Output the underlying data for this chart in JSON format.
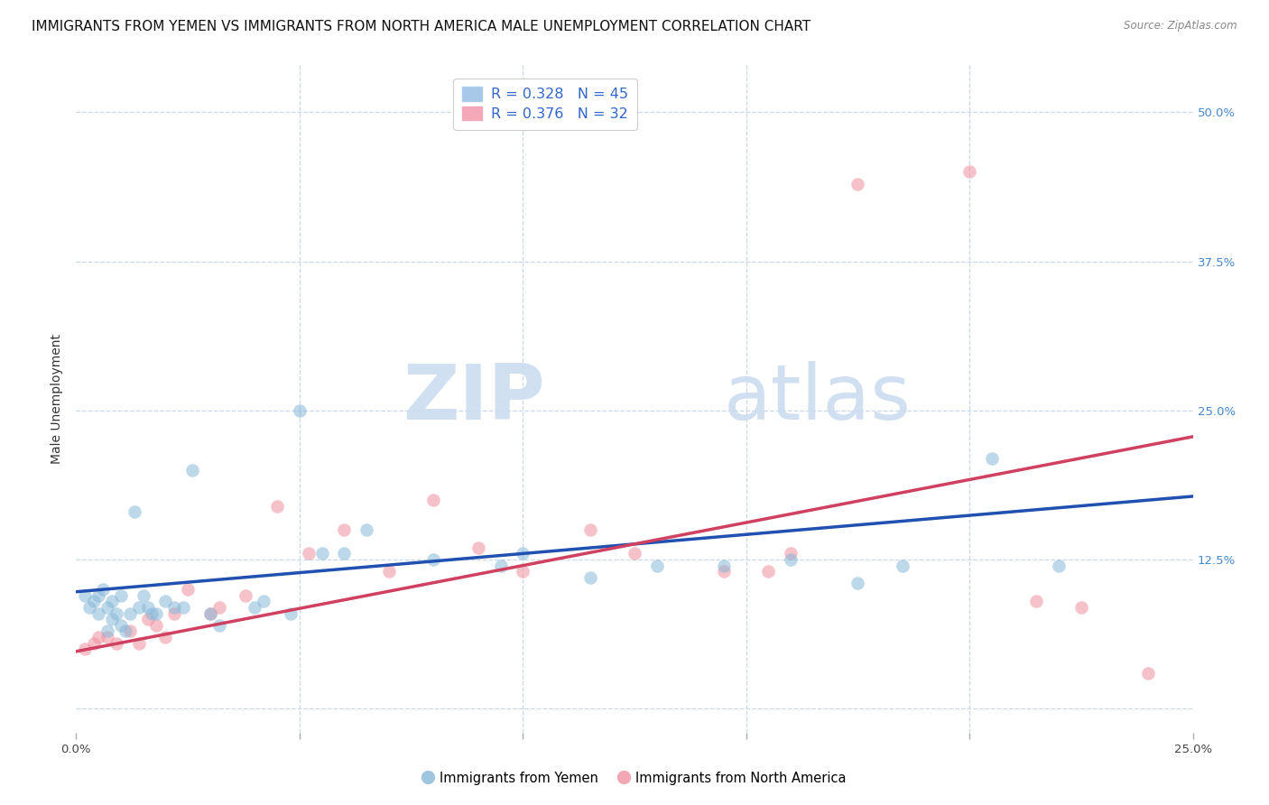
{
  "title": "IMMIGRANTS FROM YEMEN VS IMMIGRANTS FROM NORTH AMERICA MALE UNEMPLOYMENT CORRELATION CHART",
  "source": "Source: ZipAtlas.com",
  "ylabel": "Male Unemployment",
  "xlim": [
    0.0,
    0.25
  ],
  "ylim": [
    -0.02,
    0.54
  ],
  "xticks": [
    0.0,
    0.05,
    0.1,
    0.15,
    0.2,
    0.25
  ],
  "yticks_right": [
    0.0,
    0.125,
    0.25,
    0.375,
    0.5
  ],
  "ytick_labels_right": [
    "",
    "12.5%",
    "25.0%",
    "37.5%",
    "50.0%"
  ],
  "xtick_labels": [
    "0.0%",
    "",
    "",
    "",
    "",
    "25.0%"
  ],
  "legend_label1": "R = 0.328   N = 45",
  "legend_label2": "R = 0.376   N = 32",
  "legend_color1": "#a8c8e8",
  "legend_color2": "#f4a8b8",
  "scatter_color1": "#88b8d8",
  "scatter_color2": "#f090a0",
  "line_color1": "#2050b0",
  "line_color2": "#d04060",
  "watermark_zip": "ZIP",
  "watermark_atlas": "atlas",
  "blue_points_x": [
    0.002,
    0.003,
    0.004,
    0.005,
    0.005,
    0.006,
    0.007,
    0.007,
    0.008,
    0.008,
    0.009,
    0.01,
    0.01,
    0.011,
    0.012,
    0.013,
    0.014,
    0.015,
    0.016,
    0.017,
    0.018,
    0.02,
    0.022,
    0.024,
    0.026,
    0.03,
    0.032,
    0.04,
    0.042,
    0.048,
    0.05,
    0.055,
    0.06,
    0.065,
    0.08,
    0.095,
    0.1,
    0.115,
    0.13,
    0.145,
    0.16,
    0.175,
    0.185,
    0.205,
    0.22
  ],
  "blue_points_y": [
    0.095,
    0.085,
    0.09,
    0.095,
    0.08,
    0.1,
    0.085,
    0.065,
    0.09,
    0.075,
    0.08,
    0.095,
    0.07,
    0.065,
    0.08,
    0.165,
    0.085,
    0.095,
    0.085,
    0.08,
    0.08,
    0.09,
    0.085,
    0.085,
    0.2,
    0.08,
    0.07,
    0.085,
    0.09,
    0.08,
    0.25,
    0.13,
    0.13,
    0.15,
    0.125,
    0.12,
    0.13,
    0.11,
    0.12,
    0.12,
    0.125,
    0.105,
    0.12,
    0.21,
    0.12
  ],
  "pink_points_x": [
    0.002,
    0.004,
    0.005,
    0.007,
    0.009,
    0.012,
    0.014,
    0.016,
    0.018,
    0.02,
    0.022,
    0.025,
    0.03,
    0.032,
    0.038,
    0.045,
    0.052,
    0.06,
    0.07,
    0.08,
    0.09,
    0.1,
    0.115,
    0.125,
    0.145,
    0.155,
    0.16,
    0.175,
    0.2,
    0.215,
    0.225,
    0.24
  ],
  "pink_points_y": [
    0.05,
    0.055,
    0.06,
    0.06,
    0.055,
    0.065,
    0.055,
    0.075,
    0.07,
    0.06,
    0.08,
    0.1,
    0.08,
    0.085,
    0.095,
    0.17,
    0.13,
    0.15,
    0.115,
    0.175,
    0.135,
    0.115,
    0.15,
    0.13,
    0.115,
    0.115,
    0.13,
    0.44,
    0.45,
    0.09,
    0.085,
    0.03
  ],
  "blue_line_x": [
    0.0,
    0.25
  ],
  "blue_line_y": [
    0.098,
    0.178
  ],
  "pink_line_x": [
    0.0,
    0.25
  ],
  "pink_line_y": [
    0.048,
    0.228
  ],
  "grid_color": "#c8d8ec",
  "background_color": "#ffffff",
  "title_fontsize": 11,
  "axis_label_fontsize": 10,
  "tick_fontsize": 9.5,
  "marker_size": 110
}
